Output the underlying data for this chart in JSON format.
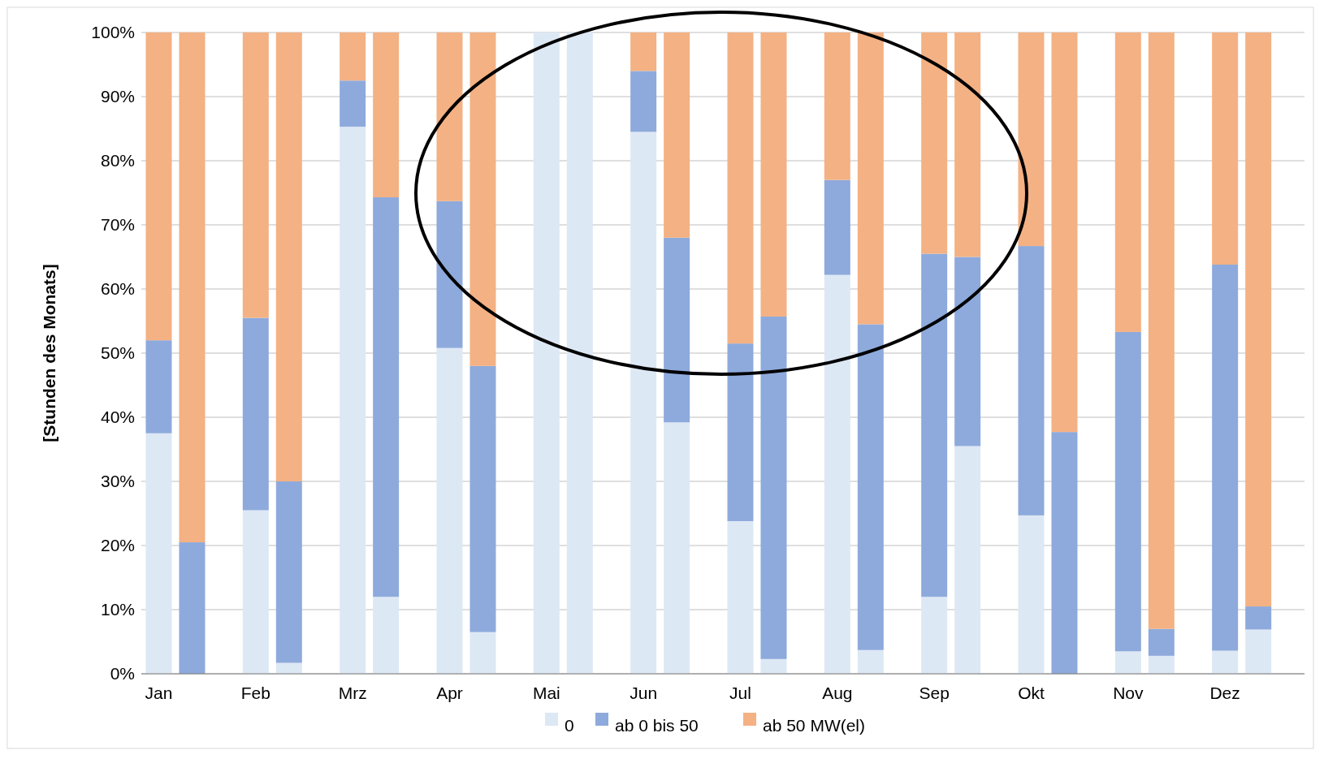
{
  "chart_data": {
    "type": "bar",
    "stacked": true,
    "ylabel": "[Stunden des Monats]",
    "categories": [
      "Jan",
      null,
      "Feb",
      null,
      "Mrz",
      null,
      "Apr",
      null,
      "Mai",
      null,
      "Jun",
      null,
      "Jul",
      null,
      "Aug",
      null,
      "Sep",
      null,
      "Okt",
      null,
      "Nov",
      null,
      "Dez",
      null
    ],
    "series": [
      {
        "name": "0",
        "color": "#dde8f5",
        "values": [
          37.5,
          0,
          25.5,
          1.7,
          85.3,
          12,
          50.8,
          6.5,
          100,
          100,
          84.5,
          39.2,
          23.8,
          2.3,
          62.2,
          3.7,
          12,
          35.5,
          24.7,
          0,
          3.5,
          2.8,
          3.6,
          6.9
        ]
      },
      {
        "name": "ab 0 bis 50",
        "color": "#8eaadc",
        "values": [
          14.5,
          20.5,
          30,
          28.3,
          7.2,
          62.3,
          22.9,
          41.5,
          0,
          0,
          9.5,
          28.8,
          27.7,
          53.4,
          14.8,
          50.8,
          53.5,
          29.5,
          42,
          37.7,
          49.8,
          4.2,
          60.2,
          3.6
        ]
      },
      {
        "name": "ab 50 MW(el)",
        "color": "#f4b183",
        "values": [
          48,
          79.5,
          44.5,
          70,
          7.5,
          25.7,
          26.3,
          52,
          0,
          0,
          6,
          32,
          48.5,
          44.3,
          23,
          45.5,
          34.5,
          35,
          33.3,
          62.3,
          46.7,
          93,
          36.2,
          89.5
        ]
      }
    ],
    "ylim": [
      0,
      100
    ],
    "yticks": [
      {
        "value": 0,
        "label": "0%"
      },
      {
        "value": 10,
        "label": "10%"
      },
      {
        "value": 20,
        "label": "20%"
      },
      {
        "value": 30,
        "label": "30%"
      },
      {
        "value": 40,
        "label": "40%"
      },
      {
        "value": 50,
        "label": "50%"
      },
      {
        "value": 60,
        "label": "60%"
      },
      {
        "value": 70,
        "label": "70%"
      },
      {
        "value": 80,
        "label": "80%"
      },
      {
        "value": 90,
        "label": "90%"
      },
      {
        "value": 100,
        "label": "100%"
      }
    ],
    "grid": "y",
    "legend": "bottom"
  }
}
